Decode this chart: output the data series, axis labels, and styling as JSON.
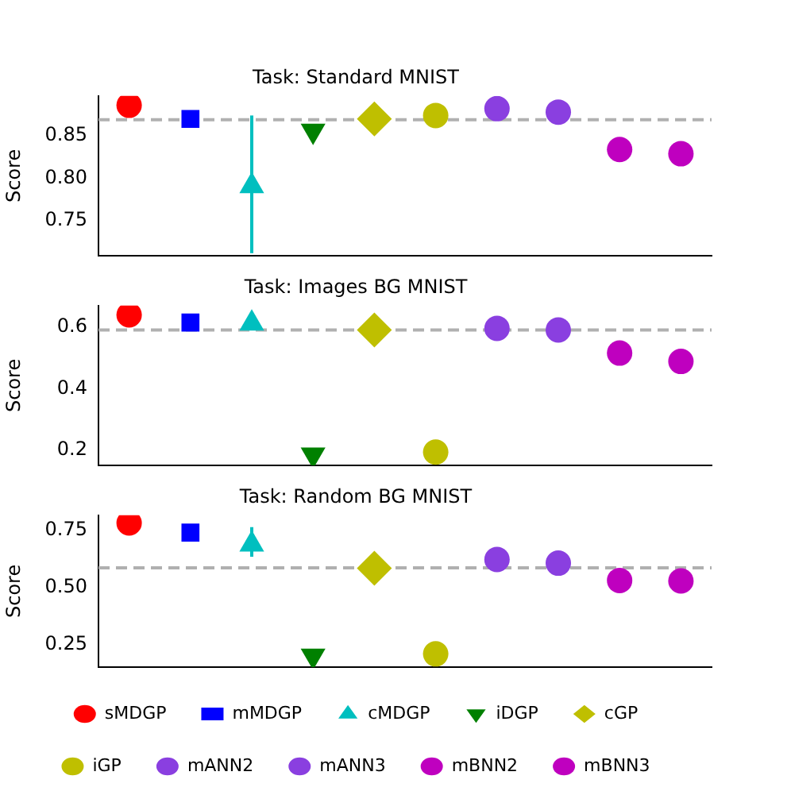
{
  "chart_data": [
    {
      "type": "scatter",
      "title": "Task: Standard MNIST",
      "ylabel": "Score",
      "categories": [
        null,
        null,
        null,
        null,
        null,
        null,
        null,
        null,
        null,
        null
      ],
      "ylim": [
        0.709,
        0.897
      ],
      "yticks": [
        {
          "value": 0.75,
          "label": "0.75"
        },
        {
          "value": 0.8,
          "label": "0.80"
        },
        0.85
      ],
      "grid": false,
      "legend": false,
      "tick_labels": "y",
      "ref_lines": [
        {
          "axis": "y",
          "value": 0.869,
          "color": "#b0b0b0",
          "line_style": "dashed"
        }
      ],
      "series": [
        {
          "color": "#ff0000",
          "marker": "circle",
          "values": [
            0.886,
            null,
            null,
            null,
            null,
            null,
            null,
            null,
            null,
            null
          ]
        },
        {
          "color": "#0000ff",
          "marker": "square",
          "values": [
            null,
            0.87,
            null,
            null,
            null,
            null,
            null,
            null,
            null,
            null
          ]
        },
        {
          "color": "#00bfbf",
          "marker": "triangle",
          "values": [
            null,
            null,
            0.791,
            null,
            null,
            null,
            null,
            null,
            null,
            null
          ],
          "errors": [
            null,
            null,
            [
              0.712,
              0.874
            ],
            null,
            null,
            null,
            null,
            null,
            null,
            null
          ]
        },
        {
          "color": "#008000",
          "marker": "triangle_down",
          "values": [
            null,
            null,
            null,
            0.856,
            null,
            null,
            null,
            null,
            null,
            null
          ]
        },
        {
          "color": "#bfbf00",
          "marker": "diamond",
          "values": [
            null,
            null,
            null,
            null,
            0.87,
            null,
            null,
            null,
            null,
            null
          ]
        },
        {
          "color": "#bfbf00",
          "marker": "circle",
          "values": [
            null,
            null,
            null,
            null,
            null,
            0.874,
            null,
            null,
            null,
            null
          ]
        },
        {
          "color": "#8a3fe0",
          "marker": "circle",
          "values": [
            null,
            null,
            null,
            null,
            null,
            null,
            0.882,
            null,
            null,
            null
          ]
        },
        {
          "color": "#8a3fe0",
          "marker": "circle",
          "values": [
            null,
            null,
            null,
            null,
            null,
            null,
            null,
            0.878,
            null,
            null
          ]
        },
        {
          "color": "#bf00bf",
          "marker": "circle",
          "values": [
            null,
            null,
            null,
            null,
            null,
            null,
            null,
            null,
            0.834,
            null
          ]
        },
        {
          "color": "#bf00bf",
          "marker": "circle",
          "values": [
            null,
            null,
            null,
            null,
            null,
            null,
            null,
            null,
            null,
            0.829
          ]
        }
      ]
    },
    {
      "type": "scatter",
      "title": "Task: Images BG MNIST",
      "ylabel": "Score",
      "categories": [
        null,
        null,
        null,
        null,
        null,
        null,
        null,
        null,
        null,
        null
      ],
      "ylim": [
        0.151,
        0.669
      ],
      "yticks": [
        0.2,
        0.4,
        0.6
      ],
      "grid": false,
      "legend": false,
      "tick_labels": "y",
      "ref_lines": [
        {
          "axis": "y",
          "value": 0.59,
          "color": "#b0b0b0",
          "line_style": "dashed"
        }
      ],
      "series": [
        {
          "color": "#ff0000",
          "marker": "circle",
          "values": [
            0.639,
            null,
            null,
            null,
            null,
            null,
            null,
            null,
            null,
            null
          ]
        },
        {
          "color": "#0000ff",
          "marker": "square",
          "values": [
            null,
            0.614,
            null,
            null,
            null,
            null,
            null,
            null,
            null,
            null
          ]
        },
        {
          "color": "#00bfbf",
          "marker": "triangle",
          "values": [
            null,
            null,
            0.611,
            null,
            null,
            null,
            null,
            null,
            null,
            null
          ]
        },
        {
          "color": "#008000",
          "marker": "triangle_down",
          "values": [
            null,
            null,
            null,
            0.186,
            null,
            null,
            null,
            null,
            null,
            null
          ]
        },
        {
          "color": "#bfbf00",
          "marker": "diamond",
          "values": [
            null,
            null,
            null,
            null,
            0.59,
            null,
            null,
            null,
            null,
            null
          ]
        },
        {
          "color": "#bfbf00",
          "marker": "circle",
          "values": [
            null,
            null,
            null,
            null,
            null,
            0.194,
            null,
            null,
            null,
            null
          ]
        },
        {
          "color": "#8a3fe0",
          "marker": "circle",
          "values": [
            null,
            null,
            null,
            null,
            null,
            null,
            0.595,
            null,
            null,
            null
          ]
        },
        {
          "color": "#8a3fe0",
          "marker": "circle",
          "values": [
            null,
            null,
            null,
            null,
            null,
            null,
            null,
            0.59,
            null,
            null
          ]
        },
        {
          "color": "#bf00bf",
          "marker": "circle",
          "values": [
            null,
            null,
            null,
            null,
            null,
            null,
            null,
            null,
            0.515,
            null
          ]
        },
        {
          "color": "#bf00bf",
          "marker": "circle",
          "values": [
            null,
            null,
            null,
            null,
            null,
            null,
            null,
            null,
            null,
            0.488
          ]
        }
      ]
    },
    {
      "type": "scatter",
      "title": "Task: Random BG MNIST",
      "ylabel": "Score",
      "categories": [
        null,
        null,
        null,
        null,
        null,
        null,
        null,
        null,
        null,
        null
      ],
      "ylim": [
        0.15,
        0.816
      ],
      "yticks": [
        0.25,
        {
          "value": 0.5,
          "label": "0.50"
        },
        0.75
      ],
      "grid": false,
      "legend": "bottom",
      "tick_labels": "y",
      "ref_lines": [
        {
          "axis": "y",
          "value": 0.585,
          "color": "#b0b0b0",
          "line_style": "dashed"
        }
      ],
      "series": [
        {
          "name": "sMDGP",
          "color": "#ff0000",
          "marker": "circle",
          "values": [
            0.782,
            null,
            null,
            null,
            null,
            null,
            null,
            null,
            null,
            null
          ]
        },
        {
          "name": "mMDGP",
          "color": "#0000ff",
          "marker": "square",
          "values": [
            null,
            0.74,
            null,
            null,
            null,
            null,
            null,
            null,
            null,
            null
          ]
        },
        {
          "name": "cMDGP",
          "color": "#00bfbf",
          "marker": "triangle",
          "values": [
            null,
            null,
            0.688,
            null,
            null,
            null,
            null,
            null,
            null,
            null
          ],
          "errors": [
            null,
            null,
            [
              0.634,
              0.764
            ],
            null,
            null,
            null,
            null,
            null,
            null,
            null
          ]
        },
        {
          "name": "iDGP",
          "color": "#008000",
          "marker": "triangle_down",
          "values": [
            null,
            null,
            null,
            0.2,
            null,
            null,
            null,
            null,
            null,
            null
          ]
        },
        {
          "name": "cGP",
          "color": "#bfbf00",
          "marker": "diamond",
          "values": [
            null,
            null,
            null,
            null,
            0.584,
            null,
            null,
            null,
            null,
            null
          ]
        },
        {
          "name": "iGP",
          "color": "#bfbf00",
          "marker": "circle",
          "values": [
            null,
            null,
            null,
            null,
            null,
            0.208,
            null,
            null,
            null,
            null
          ]
        },
        {
          "name": "mANN2",
          "color": "#8a3fe0",
          "marker": "circle",
          "values": [
            null,
            null,
            null,
            null,
            null,
            null,
            0.622,
            null,
            null,
            null
          ]
        },
        {
          "name": "mANN3",
          "color": "#8a3fe0",
          "marker": "circle",
          "values": [
            null,
            null,
            null,
            null,
            null,
            null,
            null,
            0.606,
            null,
            null
          ]
        },
        {
          "name": "mBNN2",
          "color": "#bf00bf",
          "marker": "circle",
          "values": [
            null,
            null,
            null,
            null,
            null,
            null,
            null,
            null,
            0.53,
            null
          ]
        },
        {
          "name": "mBNN3",
          "color": "#bf00bf",
          "marker": "circle",
          "values": [
            null,
            null,
            null,
            null,
            null,
            null,
            null,
            null,
            null,
            0.528
          ]
        }
      ]
    }
  ]
}
